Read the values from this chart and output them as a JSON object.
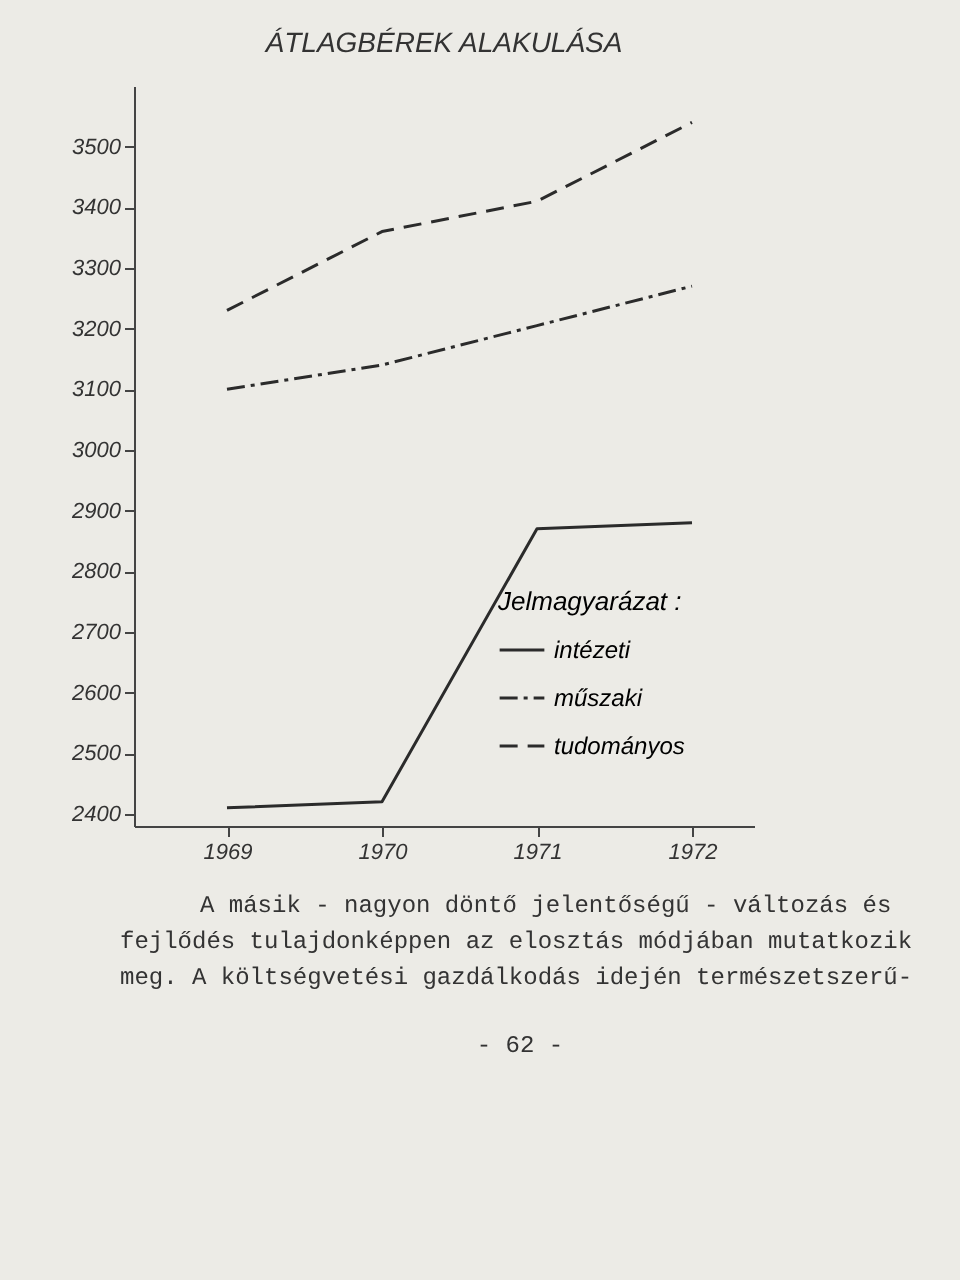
{
  "chart_data": {
    "type": "line",
    "title": "ÁTLAGBÉREK ALAKULÁSA",
    "legend_title": "Jelmagyarázat :",
    "categories": [
      "1969",
      "1970",
      "1971",
      "1972"
    ],
    "series": [
      {
        "name": "intézeti",
        "color": "#2b2b2b",
        "line_style": "solid",
        "values": [
          2410,
          2420,
          2870,
          2880
        ]
      },
      {
        "name": "műszaki",
        "color": "#2b2b2b",
        "line_style": "dashdot",
        "values": [
          3100,
          3140,
          3205,
          3270
        ]
      },
      {
        "name": "tudományos",
        "color": "#2b2b2b",
        "line_style": "dashed",
        "values": [
          3230,
          3360,
          3410,
          3540
        ]
      }
    ],
    "ylim": [
      2380,
      3600
    ],
    "yticks": [
      2400,
      2500,
      2600,
      2700,
      2800,
      2900,
      3000,
      3100,
      3200,
      3300,
      3400,
      3500
    ],
    "grid": false,
    "legend": "bottom right",
    "marker": "none",
    "annotations": [
      "A másik - nagyon döntő jelentőségű - változás és fejlődés tulajdonképpen az elosztás módjában mutatkozik meg. A költségvetési gazdálkodás idején természetszerű-",
      "- 62 -"
    ]
  }
}
